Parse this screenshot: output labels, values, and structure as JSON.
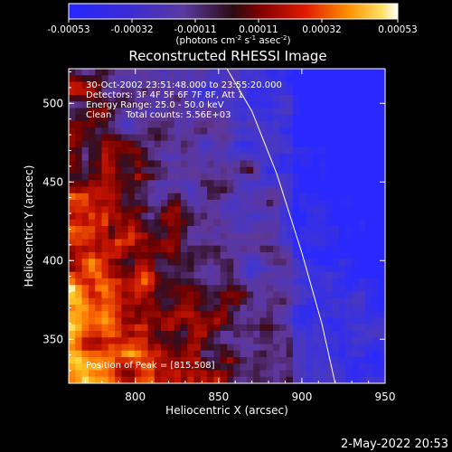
{
  "chart_data": {
    "type": "heatmap",
    "title": "Reconstructed RHESSI Image",
    "xlabel": "Heliocentric X (arcsec)",
    "ylabel": "Heliocentric Y (arcsec)",
    "xlim": [
      760,
      950
    ],
    "ylim": [
      322,
      522
    ],
    "x_ticks": [
      "800",
      "850",
      "900",
      "950"
    ],
    "y_ticks": [
      "350",
      "400",
      "450",
      "500"
    ],
    "colorbar": {
      "ticks": [
        "-0.00053",
        "-0.00032",
        "-0.00011",
        "0.00011",
        "0.00032",
        "0.00053"
      ],
      "label": "(photons cm",
      "label_sup1": "-2",
      "label_mid": " s",
      "label_sup2": "-1",
      "label_mid2": " asec",
      "label_sup3": "-2",
      "label_end": ")",
      "range": [
        -0.00053,
        0.00053
      ]
    },
    "annotations": [
      "30-Oct-2002 23:51:48.000 to 23:55:20.000",
      "Detectors: 3F 4F 5F 6F 7F 8F, Att 1",
      "Energy Range: 25.0 - 50.0 keV",
      "Clean     Total counts: 5.56E+03"
    ],
    "peak_label": "Position of Peak = [815,508]",
    "limb_curve": [
      [
        855,
        522
      ],
      [
        870,
        495
      ],
      [
        885,
        455
      ],
      [
        900,
        405
      ],
      [
        912,
        360
      ],
      [
        920,
        322
      ]
    ]
  },
  "timestamp": "2-May-2022 20:53"
}
